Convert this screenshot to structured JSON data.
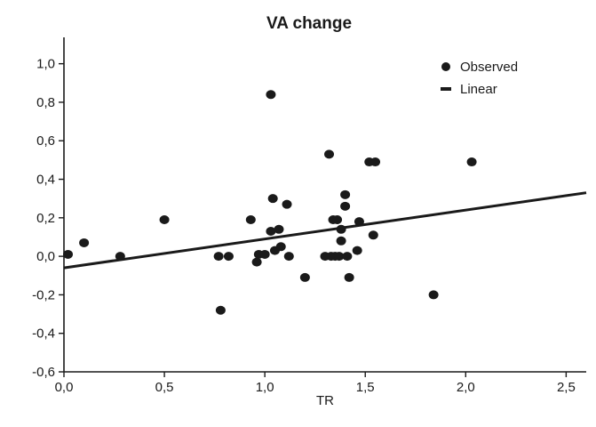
{
  "chart_data": {
    "type": "scatter",
    "title": "VA change",
    "xlabel": "TR",
    "ylabel": "",
    "xlim": [
      0.0,
      2.6
    ],
    "ylim": [
      -0.6,
      1.1
    ],
    "x_ticks": [
      0.0,
      0.5,
      1.0,
      1.5,
      2.0,
      2.5
    ],
    "x_tick_labels": [
      "0,0",
      "0,5",
      "1,0",
      "1,5",
      "2,0",
      "2,5"
    ],
    "y_ticks": [
      -0.6,
      -0.4,
      -0.2,
      0.0,
      0.2,
      0.4,
      0.6,
      0.8,
      1.0
    ],
    "y_tick_labels": [
      "-0,6",
      "-0,4",
      "-0,2",
      "0,0",
      "0,2",
      "0,4",
      "0,6",
      "0,8",
      "1,0"
    ],
    "legend": {
      "position": "top-right",
      "entries": [
        {
          "label": "Observed",
          "marker": "dot"
        },
        {
          "label": "Linear",
          "marker": "line"
        }
      ]
    },
    "series": [
      {
        "name": "Observed",
        "type": "scatter",
        "color": "#1a1a1a",
        "points": [
          [
            0.02,
            0.01
          ],
          [
            0.1,
            0.07
          ],
          [
            0.28,
            0.0
          ],
          [
            0.5,
            0.19
          ],
          [
            0.77,
            0.0
          ],
          [
            0.78,
            -0.28
          ],
          [
            0.82,
            0.0
          ],
          [
            0.93,
            0.19
          ],
          [
            0.96,
            -0.03
          ],
          [
            0.97,
            0.01
          ],
          [
            1.0,
            0.01
          ],
          [
            1.03,
            0.84
          ],
          [
            1.03,
            0.13
          ],
          [
            1.04,
            0.3
          ],
          [
            1.05,
            0.03
          ],
          [
            1.07,
            0.14
          ],
          [
            1.08,
            0.05
          ],
          [
            1.11,
            0.27
          ],
          [
            1.12,
            0.0
          ],
          [
            1.2,
            -0.11
          ],
          [
            1.3,
            0.0
          ],
          [
            1.32,
            0.53
          ],
          [
            1.33,
            0.0
          ],
          [
            1.34,
            0.19
          ],
          [
            1.35,
            0.0
          ],
          [
            1.36,
            0.19
          ],
          [
            1.37,
            0.0
          ],
          [
            1.38,
            0.08
          ],
          [
            1.38,
            0.14
          ],
          [
            1.4,
            0.32
          ],
          [
            1.4,
            0.26
          ],
          [
            1.41,
            0.0
          ],
          [
            1.42,
            -0.11
          ],
          [
            1.46,
            0.03
          ],
          [
            1.47,
            0.18
          ],
          [
            1.52,
            0.49
          ],
          [
            1.54,
            0.11
          ],
          [
            1.55,
            0.49
          ],
          [
            1.84,
            -0.2
          ],
          [
            2.03,
            0.49
          ]
        ]
      },
      {
        "name": "Linear",
        "type": "line",
        "color": "#1a1a1a",
        "points": [
          [
            0.0,
            -0.06
          ],
          [
            2.6,
            0.33
          ]
        ]
      }
    ]
  }
}
